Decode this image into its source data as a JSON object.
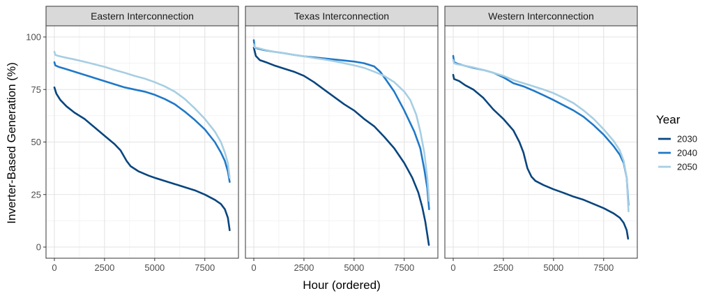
{
  "chart_data": {
    "type": "line",
    "xlabel": "Hour (ordered)",
    "ylabel": "Inverter-Based Generation (%)",
    "xlim": [
      0,
      8760
    ],
    "ylim": [
      0,
      100
    ],
    "x_ticks": [
      0,
      2500,
      5000,
      7500
    ],
    "x_tick_labels": [
      "0",
      "2500",
      "5000",
      "7500"
    ],
    "y_ticks": [
      0,
      25,
      50,
      75,
      100
    ],
    "y_tick_labels": [
      "0",
      "25",
      "50",
      "75",
      "100"
    ],
    "grid": true,
    "legend": {
      "title": "Year",
      "placement": "right",
      "entries": [
        {
          "label": "2030",
          "color": "#08457e"
        },
        {
          "label": "2040",
          "color": "#1f78c8"
        },
        {
          "label": "2050",
          "color": "#a6cee3"
        }
      ]
    },
    "panels": [
      {
        "title": "Eastern Interconnection",
        "series": [
          {
            "name": "2030",
            "color": "#08457e",
            "points": [
              [
                0,
                76
              ],
              [
                100,
                73
              ],
              [
                300,
                70
              ],
              [
                600,
                67
              ],
              [
                1000,
                64
              ],
              [
                1500,
                61
              ],
              [
                2000,
                57
              ],
              [
                2500,
                53
              ],
              [
                3000,
                49
              ],
              [
                3300,
                46
              ],
              [
                3600,
                41
              ],
              [
                3800,
                38.5
              ],
              [
                4200,
                36
              ],
              [
                4700,
                34
              ],
              [
                5000,
                33
              ],
              [
                5500,
                31.5
              ],
              [
                6000,
                30
              ],
              [
                6500,
                28.5
              ],
              [
                7000,
                27
              ],
              [
                7500,
                25
              ],
              [
                8000,
                22.5
              ],
              [
                8300,
                20.5
              ],
              [
                8500,
                18
              ],
              [
                8650,
                14
              ],
              [
                8740,
                8
              ]
            ]
          },
          {
            "name": "2040",
            "color": "#1f78c8",
            "points": [
              [
                0,
                88
              ],
              [
                40,
                86.5
              ],
              [
                200,
                85.8
              ],
              [
                500,
                85
              ],
              [
                1000,
                83.5
              ],
              [
                1500,
                82
              ],
              [
                2000,
                80.5
              ],
              [
                2500,
                79
              ],
              [
                3000,
                77.5
              ],
              [
                3500,
                76
              ],
              [
                4000,
                75
              ],
              [
                4500,
                74
              ],
              [
                5000,
                72.5
              ],
              [
                5500,
                70.5
              ],
              [
                6000,
                68
              ],
              [
                6500,
                64.5
              ],
              [
                7000,
                60.5
              ],
              [
                7500,
                56
              ],
              [
                8000,
                50
              ],
              [
                8300,
                45
              ],
              [
                8500,
                41
              ],
              [
                8650,
                36
              ],
              [
                8740,
                31
              ]
            ]
          },
          {
            "name": "2050",
            "color": "#a6cee3",
            "points": [
              [
                0,
                93
              ],
              [
                40,
                91.5
              ],
              [
                200,
                91
              ],
              [
                500,
                90.3
              ],
              [
                1000,
                89.3
              ],
              [
                1500,
                88.2
              ],
              [
                2000,
                87
              ],
              [
                2500,
                85.8
              ],
              [
                3000,
                84.3
              ],
              [
                3500,
                83
              ],
              [
                4000,
                81.5
              ],
              [
                4500,
                80.2
              ],
              [
                5000,
                78.5
              ],
              [
                5500,
                76.5
              ],
              [
                6000,
                74
              ],
              [
                6500,
                70.5
              ],
              [
                7000,
                66
              ],
              [
                7500,
                61
              ],
              [
                8000,
                55
              ],
              [
                8300,
                50
              ],
              [
                8500,
                45
              ],
              [
                8650,
                40
              ],
              [
                8740,
                33
              ]
            ]
          }
        ]
      },
      {
        "title": "Texas Interconnection",
        "series": [
          {
            "name": "2030",
            "color": "#08457e",
            "points": [
              [
                0,
                95
              ],
              [
                100,
                91
              ],
              [
                300,
                89
              ],
              [
                600,
                88
              ],
              [
                1000,
                86.5
              ],
              [
                1500,
                85
              ],
              [
                2000,
                83.5
              ],
              [
                2500,
                81.5
              ],
              [
                3000,
                78.5
              ],
              [
                3500,
                75
              ],
              [
                4000,
                71.5
              ],
              [
                4500,
                68
              ],
              [
                5000,
                65
              ],
              [
                5500,
                61
              ],
              [
                6000,
                57.5
              ],
              [
                6500,
                52.5
              ],
              [
                7000,
                47
              ],
              [
                7500,
                40
              ],
              [
                7900,
                33
              ],
              [
                8200,
                26
              ],
              [
                8400,
                19
              ],
              [
                8550,
                12
              ],
              [
                8650,
                6
              ],
              [
                8730,
                1
              ]
            ]
          },
          {
            "name": "2040",
            "color": "#1f78c8",
            "points": [
              [
                0,
                98.5
              ],
              [
                40,
                95
              ],
              [
                200,
                94.5
              ],
              [
                500,
                93.8
              ],
              [
                1000,
                93
              ],
              [
                1500,
                92.3
              ],
              [
                2000,
                91.5
              ],
              [
                2500,
                90.8
              ],
              [
                3000,
                90.3
              ],
              [
                3500,
                89.8
              ],
              [
                4000,
                89.3
              ],
              [
                4500,
                88.8
              ],
              [
                5000,
                88.3
              ],
              [
                5500,
                87.5
              ],
              [
                6000,
                86
              ],
              [
                6300,
                83.5
              ],
              [
                6600,
                79.5
              ],
              [
                7000,
                74
              ],
              [
                7500,
                65
              ],
              [
                8000,
                55
              ],
              [
                8300,
                47
              ],
              [
                8500,
                37
              ],
              [
                8650,
                28
              ],
              [
                8740,
                18
              ]
            ]
          },
          {
            "name": "2050",
            "color": "#a6cee3",
            "points": [
              [
                0,
                96.5
              ],
              [
                40,
                95
              ],
              [
                200,
                94.8
              ],
              [
                500,
                94
              ],
              [
                1000,
                93
              ],
              [
                1500,
                92.3
              ],
              [
                2000,
                91.5
              ],
              [
                2500,
                90.8
              ],
              [
                3000,
                90
              ],
              [
                3500,
                89.3
              ],
              [
                4000,
                88.5
              ],
              [
                4500,
                87.5
              ],
              [
                5000,
                86.5
              ],
              [
                5500,
                85.3
              ],
              [
                6000,
                83.5
              ],
              [
                6500,
                81.5
              ],
              [
                7000,
                78.5
              ],
              [
                7500,
                74
              ],
              [
                7800,
                70
              ],
              [
                8100,
                63
              ],
              [
                8300,
                55
              ],
              [
                8500,
                45
              ],
              [
                8650,
                33
              ],
              [
                8740,
                22
              ]
            ]
          }
        ]
      },
      {
        "title": "Western Interconnection",
        "series": [
          {
            "name": "2030",
            "color": "#08457e",
            "points": [
              [
                0,
                82
              ],
              [
                40,
                80
              ],
              [
                300,
                79
              ],
              [
                600,
                77
              ],
              [
                1000,
                75
              ],
              [
                1500,
                71
              ],
              [
                2000,
                65.5
              ],
              [
                2500,
                61
              ],
              [
                3000,
                55.5
              ],
              [
                3300,
                50
              ],
              [
                3500,
                45
              ],
              [
                3700,
                37.5
              ],
              [
                3900,
                33.5
              ],
              [
                4100,
                31.5
              ],
              [
                4500,
                29.5
              ],
              [
                5000,
                27.5
              ],
              [
                5500,
                25.8
              ],
              [
                6000,
                24
              ],
              [
                6500,
                22.5
              ],
              [
                7000,
                20.5
              ],
              [
                7500,
                18.5
              ],
              [
                8000,
                16
              ],
              [
                8300,
                14
              ],
              [
                8500,
                11.5
              ],
              [
                8650,
                8
              ],
              [
                8720,
                4
              ]
            ]
          },
          {
            "name": "2040",
            "color": "#1f78c8",
            "points": [
              [
                0,
                91
              ],
              [
                40,
                88
              ],
              [
                200,
                87.3
              ],
              [
                500,
                86.5
              ],
              [
                1000,
                85.3
              ],
              [
                1500,
                84.3
              ],
              [
                2000,
                83
              ],
              [
                2500,
                80.8
              ],
              [
                3000,
                78
              ],
              [
                3500,
                76.5
              ],
              [
                4000,
                74.5
              ],
              [
                4500,
                72.3
              ],
              [
                5000,
                70
              ],
              [
                5500,
                67.5
              ],
              [
                6000,
                65
              ],
              [
                6500,
                62
              ],
              [
                7000,
                58
              ],
              [
                7500,
                53.5
              ],
              [
                8000,
                48
              ],
              [
                8300,
                44
              ],
              [
                8500,
                40
              ],
              [
                8650,
                33
              ],
              [
                8740,
                20
              ]
            ]
          },
          {
            "name": "2050",
            "color": "#a6cee3",
            "points": [
              [
                0,
                89
              ],
              [
                40,
                87.5
              ],
              [
                200,
                87
              ],
              [
                500,
                86.5
              ],
              [
                1000,
                85.5
              ],
              [
                1500,
                84.3
              ],
              [
                2000,
                83
              ],
              [
                2500,
                81.5
              ],
              [
                3000,
                79.5
              ],
              [
                3500,
                78
              ],
              [
                4000,
                76.5
              ],
              [
                4500,
                75
              ],
              [
                5000,
                73.3
              ],
              [
                5500,
                71
              ],
              [
                6000,
                68.5
              ],
              [
                6500,
                65
              ],
              [
                7000,
                61
              ],
              [
                7500,
                56
              ],
              [
                8000,
                50.5
              ],
              [
                8300,
                46
              ],
              [
                8500,
                41
              ],
              [
                8650,
                33
              ],
              [
                8740,
                17
              ]
            ]
          }
        ]
      }
    ]
  }
}
